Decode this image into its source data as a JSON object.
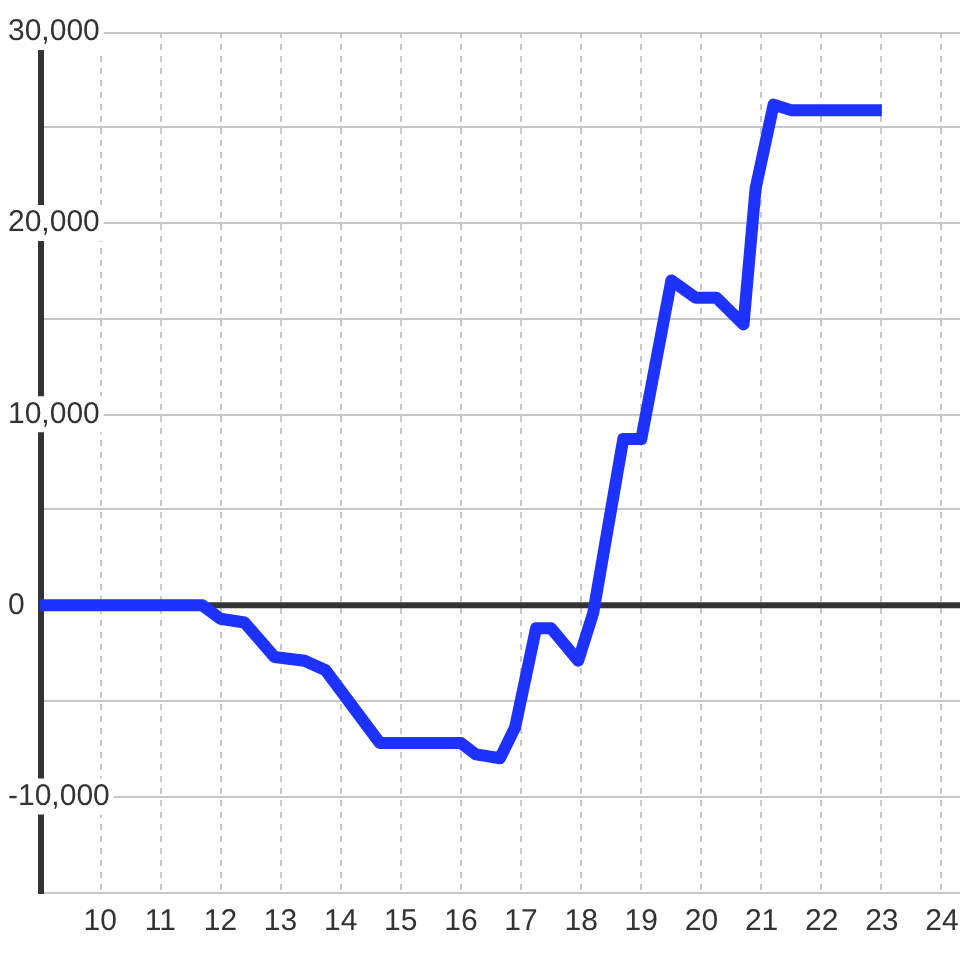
{
  "chart_data": {
    "type": "line",
    "x": [
      9,
      11.7,
      12,
      12.4,
      12.9,
      13.4,
      13.75,
      14.65,
      16,
      16.25,
      16.65,
      16.9,
      17.25,
      17.5,
      17.95,
      18.2,
      18.7,
      19,
      19.5,
      19.9,
      20.25,
      20.7,
      20.9,
      21.2,
      21.5,
      23
    ],
    "series": [
      {
        "color": "#1e32ff",
        "values": [
          0,
          0,
          -700,
          -900,
          -2700,
          -2900,
          -3400,
          -7200,
          -7200,
          -7800,
          -8000,
          -6400,
          -1200,
          -1200,
          -2900,
          -400,
          8700,
          8700,
          17000,
          16100,
          16100,
          14700,
          21800,
          26200,
          25900,
          25900
        ]
      }
    ],
    "xlim": [
      9,
      24.3
    ],
    "xticks": [
      10,
      11,
      12,
      13,
      14,
      15,
      16,
      17,
      18,
      19,
      20,
      21,
      22,
      23,
      24
    ],
    "ylim": [
      -15000,
      30000
    ],
    "yticks": [
      {
        "value": -10000,
        "label": "-10,000"
      },
      {
        "value": -5000,
        "label": null
      },
      0,
      {
        "value": 5000,
        "label": null
      },
      {
        "value": 10000,
        "label": "10,000"
      },
      {
        "value": 15000,
        "label": null
      },
      {
        "value": 20000,
        "label": "20,000"
      },
      {
        "value": 25000,
        "label": null
      },
      {
        "value": 30000,
        "label": "30,000"
      }
    ],
    "grid": true,
    "ref_lines": [
      {
        "axis": "y",
        "value": 0,
        "color": "#333333"
      }
    ],
    "marker": "none",
    "line_style": "solid"
  }
}
